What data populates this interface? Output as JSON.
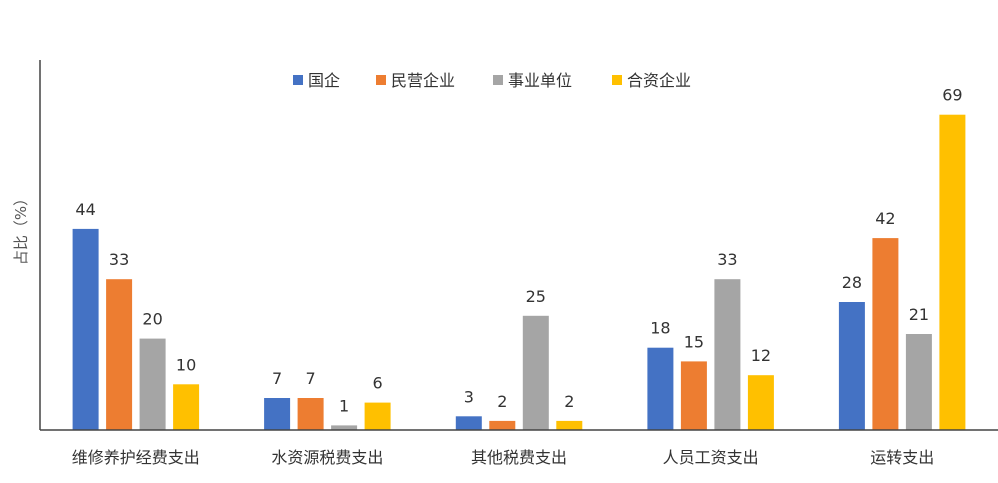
{
  "chart_data": {
    "type": "bar",
    "ylabel": "占比（%）",
    "categories": [
      "维修养护经费支出",
      "水资源税费支出",
      "其他税费支出",
      "人员工资支出",
      "运转支出"
    ],
    "series": [
      {
        "name": "国企",
        "color": "#4472C4",
        "values": [
          44,
          7,
          3,
          18,
          28
        ]
      },
      {
        "name": "民营企业",
        "color": "#ED7D31",
        "values": [
          33,
          7,
          2,
          15,
          42
        ]
      },
      {
        "name": "事业单位",
        "color": "#A5A5A5",
        "values": [
          20,
          1,
          25,
          33,
          21
        ]
      },
      {
        "name": "合资企业",
        "color": "#FFC000",
        "values": [
          10,
          6,
          2,
          12,
          69
        ]
      }
    ],
    "ylim": [
      0,
      80
    ],
    "legend": "top-center",
    "grid": false
  }
}
